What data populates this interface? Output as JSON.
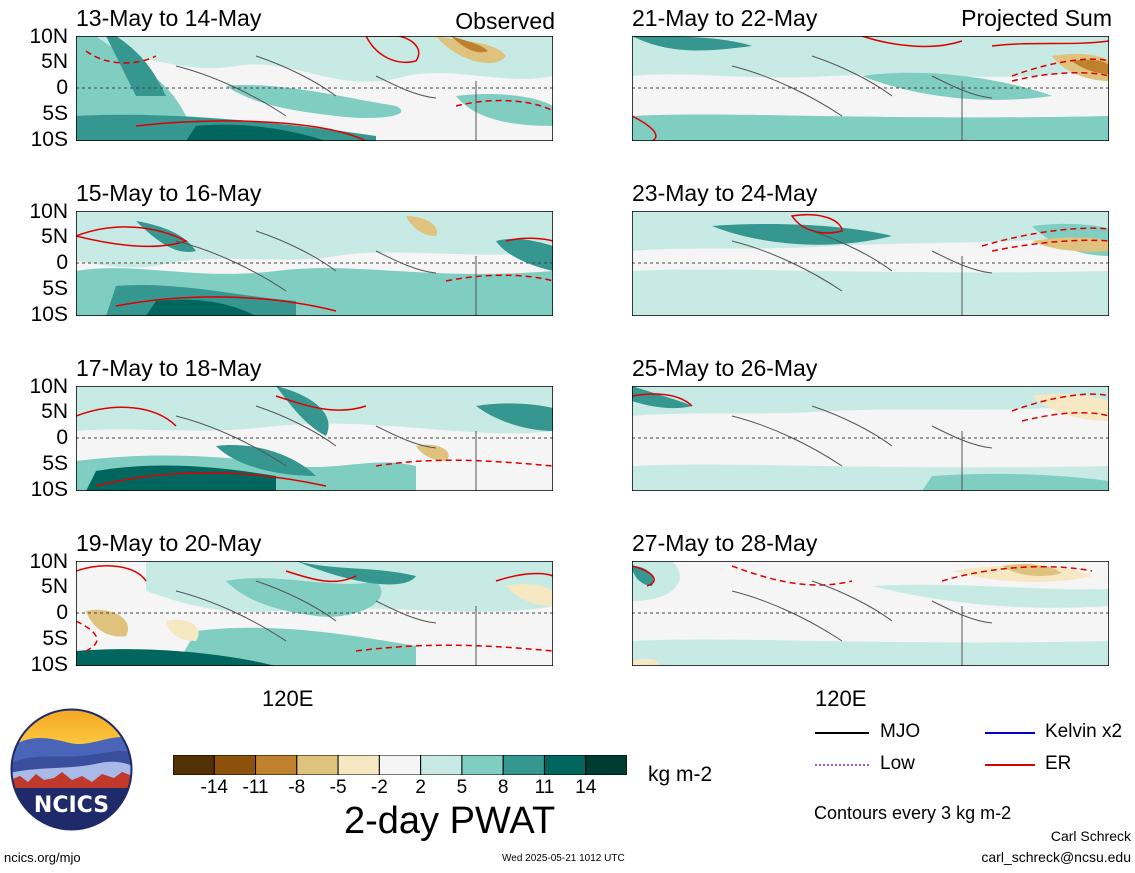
{
  "panels_left": [
    {
      "title": "13-May to 14-May",
      "tag": "Observed"
    },
    {
      "title": "15-May to 16-May",
      "tag": ""
    },
    {
      "title": "17-May to 18-May",
      "tag": ""
    },
    {
      "title": "19-May to 20-May",
      "tag": ""
    }
  ],
  "panels_right": [
    {
      "title": "21-May to 22-May",
      "tag": "Projected Sum"
    },
    {
      "title": "23-May to 24-May",
      "tag": ""
    },
    {
      "title": "25-May to 26-May",
      "tag": ""
    },
    {
      "title": "27-May to 28-May",
      "tag": ""
    }
  ],
  "lat_labels": [
    "10N",
    "5N",
    "0",
    "5S",
    "10S"
  ],
  "lon_label": "120E",
  "colorbar": {
    "ticks": [
      "-14",
      "-11",
      "-8",
      "-5",
      "-2",
      "2",
      "5",
      "8",
      "11",
      "14"
    ],
    "colors": [
      "#543005",
      "#8c510a",
      "#bf812d",
      "#dfc27d",
      "#f6e8c3",
      "#f5f5f5",
      "#c7eae5",
      "#80cdc1",
      "#35978f",
      "#01665e",
      "#003c30"
    ],
    "units": "kg m-2",
    "title": "2-day PWAT"
  },
  "legend": {
    "mjo": "MJO",
    "kelvin": "Kelvin x2",
    "low": "Low",
    "er": "ER",
    "contours": "Contours every 3 kg m-2",
    "colors": {
      "mjo": "#000000",
      "kelvin": "#0000cc",
      "low": "#9955dd",
      "er": "#dd0000"
    }
  },
  "logo_text": "NCICS",
  "footer": {
    "url": "ncics.org/mjo",
    "timestamp": "Wed 2025-05-21 1012 UTC",
    "author": "Carl Schreck",
    "email": "carl_schreck@ncsu.edu"
  }
}
